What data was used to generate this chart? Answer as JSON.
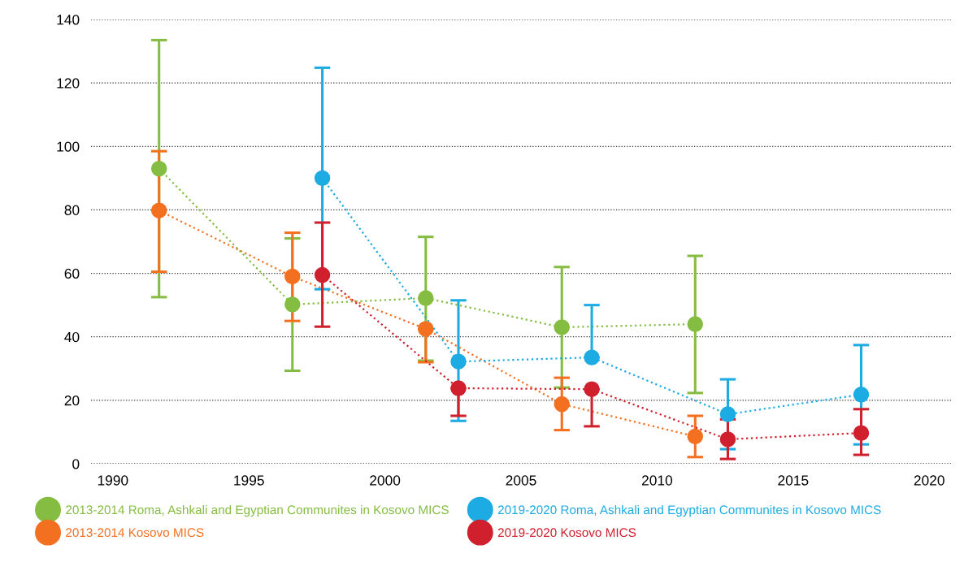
{
  "chart_data": {
    "type": "line",
    "series": [
      {
        "name": "2013-2014 Roma, Ashkali and Egyptian Communites in Kosovo MICS",
        "color": "#84bd41",
        "x": [
          1991.7,
          1996.6,
          2001.5,
          2006.5,
          2011.4
        ],
        "values": [
          93,
          50.2,
          52.2,
          43,
          44
        ],
        "errors": [
          [
            52.5,
            133.5
          ],
          [
            29.3,
            71
          ],
          [
            32.5,
            71.5
          ],
          [
            24,
            62
          ],
          [
            22.3,
            65.5
          ]
        ]
      },
      {
        "name": "2013-2014 Kosovo MICS",
        "color": "#f37021",
        "x": [
          1991.7,
          1996.6,
          2001.5,
          2006.5,
          2011.4
        ],
        "values": [
          79.8,
          59,
          42.5,
          18.8,
          8.6
        ],
        "errors": [
          [
            60.5,
            98.5
          ],
          [
            45,
            72.8
          ],
          [
            32,
            42.5
          ],
          [
            10.6,
            27.1
          ],
          [
            2.1,
            15.1
          ]
        ]
      },
      {
        "name": "2019-2020 Roma, Ashkali and Egyptian Communites in Kosovo MICS",
        "color": "#1cabe2",
        "x": [
          1997.7,
          2002.7,
          2007.6,
          2012.6,
          2017.5
        ],
        "values": [
          90,
          32.2,
          33.5,
          15.6,
          21.8
        ],
        "errors": [
          [
            55,
            124.8
          ],
          [
            13.5,
            51.5
          ],
          [
            33.5,
            50
          ],
          [
            4.6,
            26.6
          ],
          [
            6.1,
            37.4
          ]
        ]
      },
      {
        "name": "2019-2020 Kosovo MICS",
        "color": "#d0202e",
        "x": [
          1997.7,
          2002.7,
          2007.6,
          2012.6,
          2017.5
        ],
        "values": [
          59.5,
          23.8,
          23.5,
          7.7,
          9.7
        ],
        "errors": [
          [
            43.2,
            76
          ],
          [
            15.1,
            23.8
          ],
          [
            11.8,
            23.5
          ],
          [
            1.5,
            14
          ],
          [
            2.8,
            17.2
          ]
        ]
      }
    ],
    "xlim": [
      1989.2,
      2020.8
    ],
    "xticks": [
      1990,
      1995,
      2000,
      2005,
      2010,
      2015,
      2020
    ],
    "ylim": [
      0,
      140
    ],
    "yticks": [
      0,
      20,
      40,
      60,
      80,
      100,
      120,
      140
    ],
    "grid": "y",
    "legend": "bottom",
    "marker": "circle",
    "line_style": "dotted"
  }
}
